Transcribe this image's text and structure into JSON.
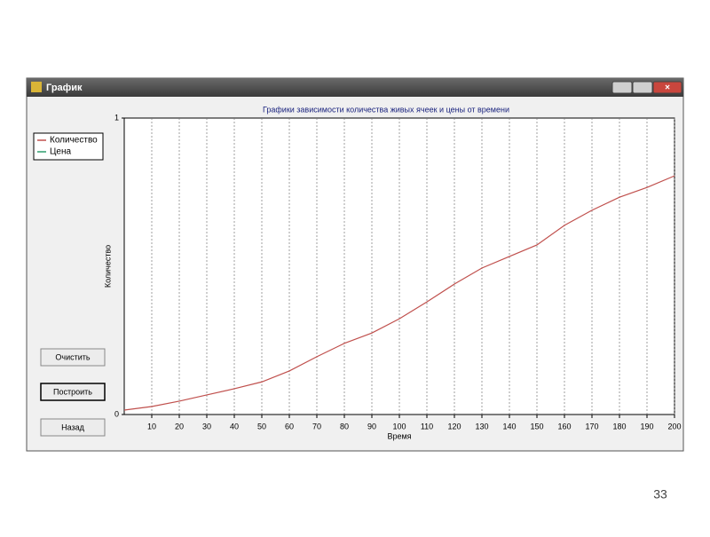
{
  "window": {
    "title": "График",
    "buttons": [
      "Очистить",
      "Построить",
      "Назад"
    ]
  },
  "slide_number": 33,
  "chart_data": {
    "type": "line",
    "title": "Графики зависимости количества живых ячеек и цены от времени",
    "x_label": "Время",
    "y_label": "Количество",
    "x": [
      0,
      10,
      20,
      30,
      40,
      50,
      60,
      70,
      80,
      90,
      100,
      110,
      120,
      130,
      140,
      150,
      160,
      170,
      180,
      190,
      200
    ],
    "series": [
      {
        "name": "Количество",
        "color": "#c0504d",
        "values": [
          0.015,
          0.027,
          0.045,
          0.066,
          0.087,
          0.11,
          0.147,
          0.195,
          0.24,
          0.275,
          0.323,
          0.38,
          0.44,
          0.494,
          0.533,
          0.572,
          0.638,
          0.689,
          0.733,
          0.766,
          0.805
        ]
      },
      {
        "name": "Цена",
        "color": "#2e9e6e",
        "values": [
          null,
          null,
          null,
          null,
          null,
          null,
          null,
          null,
          null,
          null,
          null,
          null,
          null,
          null,
          null,
          null,
          null,
          null,
          null,
          null,
          null
        ]
      }
    ],
    "xlim": [
      0,
      200
    ],
    "xticks": [
      10,
      20,
      30,
      40,
      50,
      60,
      70,
      80,
      90,
      100,
      110,
      120,
      130,
      140,
      150,
      160,
      170,
      180,
      190,
      200
    ],
    "ylim": [
      0,
      1
    ],
    "yticks": [
      0,
      1
    ],
    "grid": true,
    "legend": "top-left"
  }
}
